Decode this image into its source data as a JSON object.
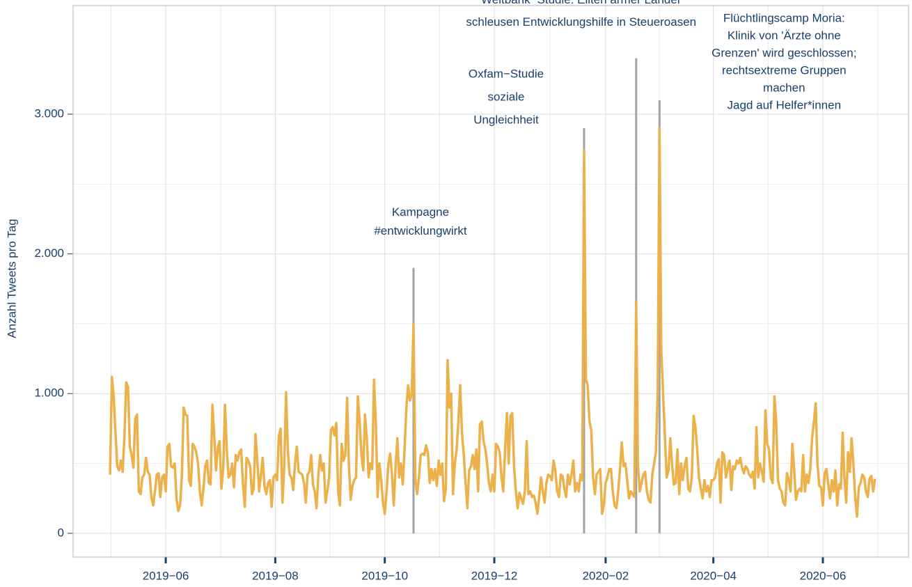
{
  "chart_data": {
    "type": "line",
    "y_label": "Anzahl Tweets pro Tag",
    "color": "#ecb14a",
    "grid": true,
    "xlim": [
      -20.6,
      444.7
    ],
    "xticks": [
      {
        "value": 31,
        "label": "2019−06"
      },
      {
        "value": 92,
        "label": "2019−08"
      },
      {
        "value": 153,
        "label": "2019−10"
      },
      {
        "value": 214,
        "label": "2019−12"
      },
      {
        "value": 276,
        "label": "2020−02"
      },
      {
        "value": 336,
        "label": "2020−04"
      },
      {
        "value": 397,
        "label": "2020−06"
      }
    ],
    "ylim": [
      -170,
      3777
    ],
    "yticks": [
      0,
      {
        "value": 1000,
        "label": "1.000"
      },
      {
        "value": 2000,
        "label": "2.000"
      },
      {
        "value": 3000,
        "label": "3.000"
      }
    ],
    "annotations": [
      {
        "x": 169,
        "y": 1900,
        "text": [
          "Kampagne",
          "#entwicklungwirkt"
        ]
      },
      {
        "x": 264,
        "y": 2900,
        "text": [
          "Oxfam−Studie",
          "soziale",
          "Ungleichheit"
        ]
      },
      {
        "x": 293,
        "y": 3400,
        "text": [
          "Weltbank−Studie: Eliten armer Länder",
          "schleusen Entwicklungshilfe in Steueroasen"
        ]
      },
      {
        "x": 306,
        "y": 3100,
        "text": [
          "Flüchtlingscamp Moria:",
          "Klinik von 'Ärzte ohne",
          "Grenzen' wird geschlossen;",
          "rechtsextreme Gruppen",
          "machen",
          "Jagd auf Helfer*innen"
        ]
      }
    ],
    "values": [
      420,
      1120,
      980,
      720,
      480,
      450,
      520,
      440,
      700,
      1080,
      1050,
      620,
      560,
      470,
      820,
      850,
      300,
      280,
      400,
      420,
      540,
      440,
      420,
      260,
      200,
      300,
      420,
      430,
      260,
      400,
      420,
      300,
      620,
      640,
      480,
      470,
      500,
      250,
      160,
      200,
      420,
      900,
      850,
      840,
      380,
      340,
      640,
      620,
      580,
      500,
      300,
      200,
      320,
      480,
      520,
      360,
      350,
      920,
      700,
      450,
      610,
      660,
      320,
      460,
      920,
      600,
      400,
      420,
      500,
      330,
      560,
      520,
      580,
      600,
      350,
      190,
      540,
      520,
      480,
      280,
      320,
      710,
      520,
      300,
      420,
      540,
      340,
      280,
      360,
      380,
      190,
      400,
      420,
      380,
      700,
      750,
      220,
      480,
      1010,
      600,
      420,
      400,
      310,
      500,
      620,
      440,
      430,
      420,
      360,
      220,
      420,
      440,
      560,
      350,
      300,
      180,
      420,
      560,
      450,
      500,
      220,
      300,
      400,
      740,
      760,
      700,
      790,
      300,
      200,
      640,
      520,
      560,
      970,
      500,
      240,
      340,
      380,
      400,
      980,
      800,
      560,
      450,
      850,
      680,
      400,
      500,
      460,
      1100,
      800,
      260,
      500,
      380,
      220,
      140,
      300,
      500,
      570,
      420,
      200,
      480,
      680,
      400,
      500,
      350,
      600,
      900,
      1060,
      950,
      1000,
      1500,
      380,
      280,
      400,
      560,
      570,
      560,
      630,
      580,
      360,
      460,
      380,
      460,
      340,
      520,
      420,
      500,
      230,
      320,
      1240,
      900,
      1000,
      280,
      500,
      600,
      800,
      1060,
      720,
      560,
      360,
      180,
      450,
      480,
      560,
      460,
      600,
      300,
      780,
      800,
      660,
      600,
      500,
      360,
      300,
      420,
      300,
      640,
      620,
      580,
      400,
      300,
      600,
      860,
      500,
      840,
      860,
      480,
      300,
      180,
      290,
      250,
      210,
      300,
      660,
      280,
      300,
      260,
      270,
      220,
      140,
      260,
      400,
      300,
      220,
      360,
      420,
      410,
      380,
      520,
      450,
      300,
      260,
      420,
      410,
      320,
      260,
      420,
      350,
      420,
      520,
      300,
      360,
      300,
      420,
      380,
      2740,
      1100,
      1060,
      800,
      740,
      400,
      280,
      420,
      440,
      460,
      140,
      200,
      360,
      400,
      460,
      460,
      300,
      200,
      180,
      300,
      460,
      650,
      480,
      500,
      380,
      250,
      300,
      280,
      260,
      1660,
      500,
      300,
      360,
      420,
      440,
      300,
      240,
      220,
      420,
      500,
      580,
      1000,
      2900,
      1300,
      1000,
      700,
      400,
      450,
      680,
      500,
      350,
      360,
      600,
      280,
      500,
      380,
      480,
      540,
      320,
      300,
      400,
      840,
      760,
      600,
      400,
      320,
      250,
      380,
      300,
      340,
      260,
      380,
      380,
      400,
      500,
      530,
      220,
      580,
      560,
      400,
      470,
      520,
      310,
      480,
      460,
      520,
      500,
      540,
      470,
      430,
      480,
      460,
      420,
      400,
      440,
      320,
      760,
      400,
      500,
      440,
      370,
      880,
      640,
      600,
      400,
      360,
      980,
      800,
      380,
      320,
      300,
      220,
      200,
      430,
      380,
      300,
      640,
      460,
      240,
      300,
      320,
      300,
      560,
      300,
      420,
      360,
      460,
      680,
      800,
      930,
      500,
      340,
      330,
      200,
      430,
      460,
      350,
      250,
      380,
      300,
      450,
      200,
      350,
      320,
      720,
      400,
      220,
      580,
      440,
      680,
      500,
      260,
      120,
      330,
      360,
      420,
      400,
      300,
      260,
      390,
      410,
      300,
      390
    ]
  }
}
